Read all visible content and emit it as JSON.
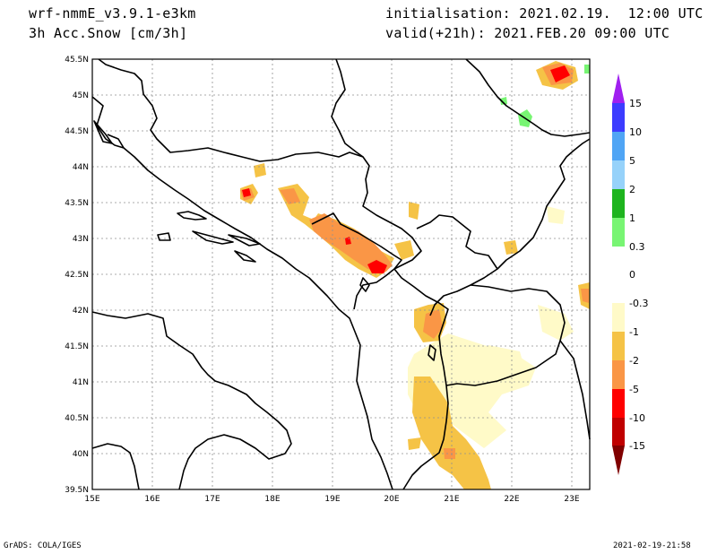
{
  "header": {
    "model": "wrf-nmmE_v3.9.1-e3km",
    "field": "3h Acc.Snow [cm/3h]",
    "init": "initialisation: 2021.02.19.  12:00 UTC",
    "valid": "valid(+21h): 2021.FEB.20 09:00 UTC"
  },
  "footer": {
    "credit": "GrADS: COLA/IGES",
    "timestamp": "2021-02-19-21:58"
  },
  "map": {
    "lon_labels": [
      "15E",
      "16E",
      "17E",
      "18E",
      "19E",
      "20E",
      "21E",
      "22E",
      "23E"
    ],
    "lat_labels": [
      "45.5N",
      "45N",
      "44.5N",
      "44N",
      "43.5N",
      "43N",
      "42.5N",
      "42N",
      "41.5N",
      "41N",
      "40.5N",
      "40N",
      "39.5N"
    ]
  },
  "legend": {
    "labels": [
      "15",
      "10",
      "5",
      "2",
      "1",
      "0.3",
      "0",
      "-0.3",
      "-1",
      "-2",
      "-5",
      "-10",
      "-15"
    ],
    "colors": {
      "top_arrow": "#a020f0",
      "c15": "#3c3cff",
      "c10": "#50a5f5",
      "c5": "#96d2fa",
      "c2": "#1eb41e",
      "c1": "#78f573",
      "c0": "#ffffff",
      "cm1": "#fffac8",
      "cm2": "#f5c346",
      "cm5": "#fa9646",
      "cm10": "#ff0000",
      "cm15": "#c00000",
      "bottom_arrow": "#800000"
    }
  }
}
